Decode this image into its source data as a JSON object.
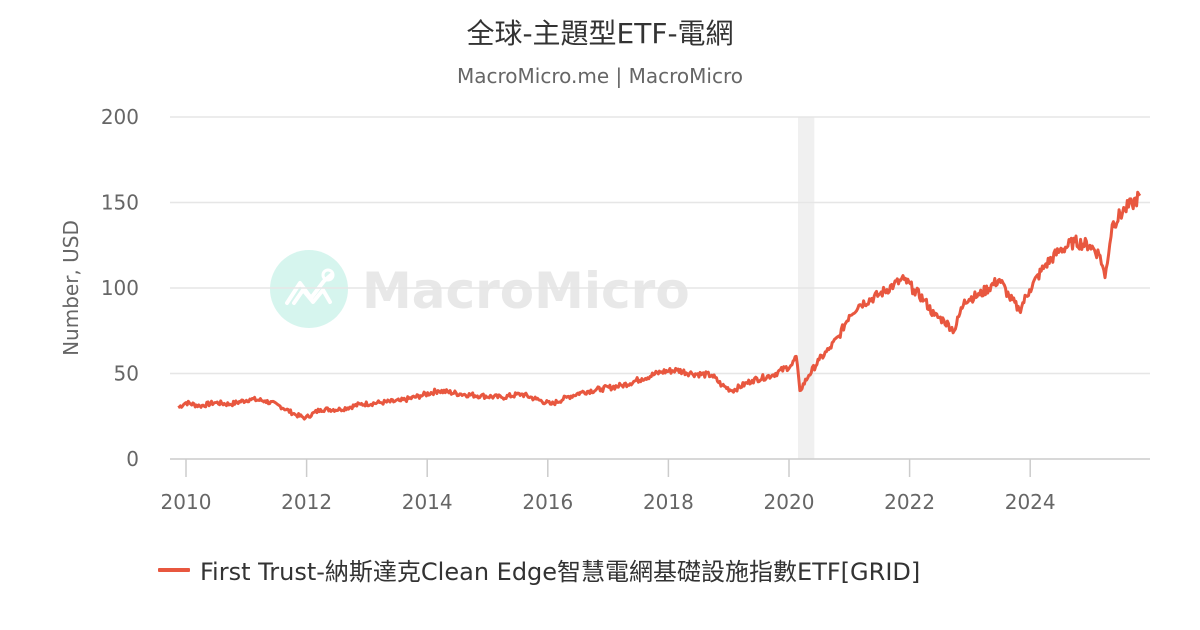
{
  "header": {
    "title": "全球-主題型ETF-電網",
    "subtitle": "MacroMicro.me | MacroMicro"
  },
  "watermark": {
    "text": "MacroMicro",
    "logo_icon": "macromicro-logo-icon"
  },
  "colors": {
    "series": "#e8573f",
    "grid": "#e6e6e6",
    "recession_band": "#f0f0f0",
    "axis_text": "#666666",
    "title_text": "#333333"
  },
  "legend": {
    "items": [
      {
        "label": "First Trust-納斯達克Clean Edge智慧電網基礎設施指數ETF[GRID]",
        "color": "#e8573f"
      }
    ]
  },
  "chart_data": {
    "type": "line",
    "title": "全球-主題型ETF-電網",
    "subtitle": "MacroMicro.me | MacroMicro",
    "xlabel": "",
    "ylabel": "Number, USD",
    "ylim": [
      0,
      200
    ],
    "yticks": [
      0,
      50,
      100,
      150,
      200
    ],
    "xticks": [
      "2010",
      "2012",
      "2014",
      "2016",
      "2018",
      "2020",
      "2022",
      "2024"
    ],
    "xlim": [
      2009.8,
      2025.9
    ],
    "grid": true,
    "legend_position": "bottom",
    "shaded_regions": [
      {
        "label": "recession",
        "x_start": 2020.15,
        "x_end": 2020.42
      }
    ],
    "series": [
      {
        "name": "First Trust-納斯達克Clean Edge智慧電網基礎設施指數ETF[GRID]",
        "x": [
          2009.87,
          2010.0,
          2010.23,
          2010.48,
          2010.73,
          2011.06,
          2011.31,
          2011.56,
          2011.81,
          2011.98,
          2012.23,
          2012.56,
          2012.89,
          2013.23,
          2013.56,
          2013.89,
          2014.18,
          2014.56,
          2014.89,
          2015.23,
          2015.56,
          2015.81,
          2016.06,
          2016.31,
          2016.56,
          2016.89,
          2017.23,
          2017.56,
          2017.89,
          2018.14,
          2018.39,
          2018.72,
          2018.89,
          2019.06,
          2019.39,
          2019.72,
          2020.05,
          2020.12,
          2020.18,
          2020.33,
          2020.5,
          2020.66,
          2020.83,
          2021.0,
          2021.16,
          2021.49,
          2021.74,
          2021.91,
          2022.07,
          2022.24,
          2022.41,
          2022.57,
          2022.74,
          2022.91,
          2023.16,
          2023.49,
          2023.65,
          2023.82,
          2023.99,
          2024.24,
          2024.49,
          2024.74,
          2024.99,
          2025.16,
          2025.24,
          2025.36,
          2025.57,
          2025.69,
          2025.82
        ],
        "values": [
          30,
          33,
          31,
          33,
          32,
          35,
          34,
          31,
          26,
          24,
          29,
          29,
          32,
          33,
          34,
          37,
          40,
          38,
          37,
          36,
          38,
          35,
          32,
          36,
          39,
          41,
          43,
          47,
          51,
          52,
          50,
          49,
          43,
          40,
          46,
          49,
          55,
          60,
          40,
          49,
          58,
          64,
          72,
          84,
          90,
          96,
          102,
          105,
          99,
          93,
          84,
          81,
          75,
          93,
          96,
          105,
          95,
          87,
          99,
          113,
          122,
          127,
          125,
          119,
          106,
          137,
          146,
          149,
          154
        ]
      }
    ]
  }
}
